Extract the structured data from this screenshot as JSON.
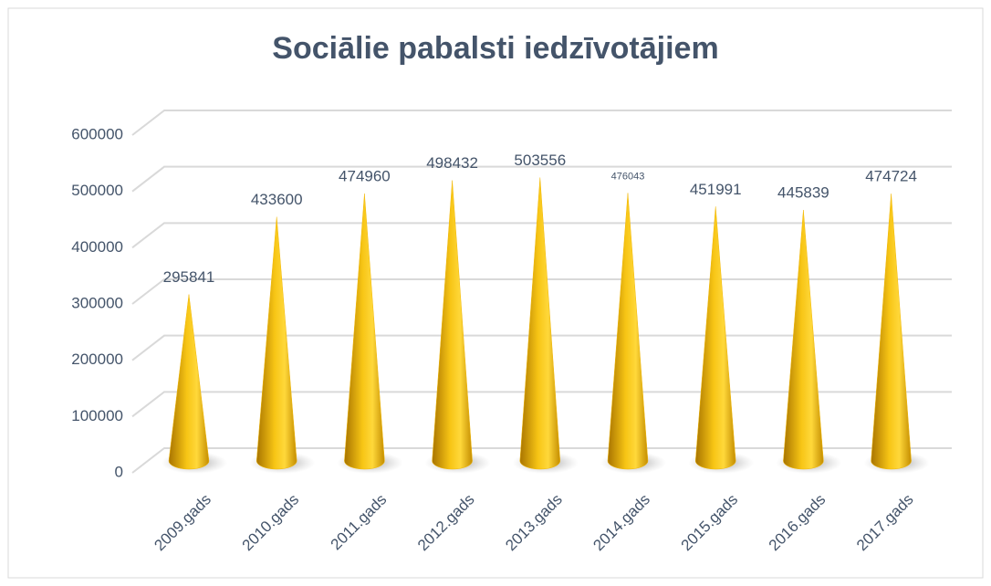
{
  "chart_data": {
    "type": "cone",
    "title": "Sociālie pabalsti iedzīvotājiem",
    "categories": [
      "2009.gads",
      "2010.gads",
      "2011.gads",
      "2012.gads",
      "2013.gads",
      "2014.gads",
      "2015.gads",
      "2016.gads",
      "2017.gads"
    ],
    "values": [
      295841,
      433600,
      474960,
      498432,
      503556,
      476043,
      451991,
      445839,
      474724
    ],
    "color": "#f2b705",
    "ylim": [
      0,
      600000
    ],
    "yticks": [
      0,
      100000,
      200000,
      300000,
      400000,
      500000,
      600000
    ],
    "grid": true
  }
}
